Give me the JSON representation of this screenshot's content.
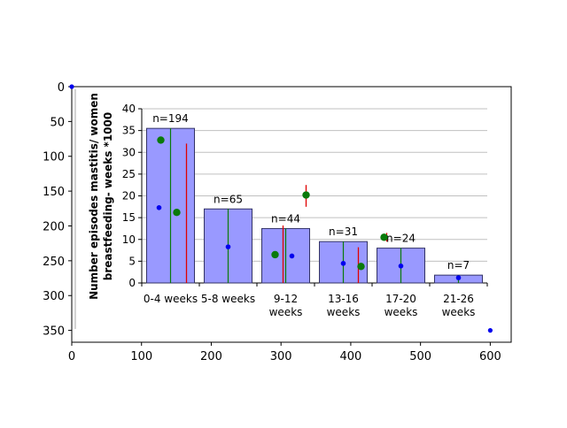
{
  "chart_data": {
    "type": "bar",
    "outer_axes": {
      "xlim": [
        0,
        630
      ],
      "ylim": [
        367,
        0
      ],
      "xticks": [
        0,
        100,
        200,
        300,
        400,
        500,
        600
      ],
      "yticks": [
        0,
        50,
        100,
        150,
        200,
        250,
        300,
        350
      ],
      "corner_points": [
        {
          "x": 0,
          "y": 0
        },
        {
          "x": 600,
          "y": 350
        }
      ]
    },
    "inner_chart": {
      "ylabel_lines": [
        "Number episodes mastitis/ women",
        "breastfeeding- weeks *1000"
      ],
      "ylim": [
        0,
        40
      ],
      "yticks": [
        0,
        5,
        10,
        15,
        20,
        25,
        30,
        35,
        40
      ],
      "grid": true,
      "categories": [
        [
          "0-4 weeks"
        ],
        [
          "5-8 weeks"
        ],
        [
          "9-12",
          "weeks"
        ],
        [
          "13-16",
          "weeks"
        ],
        [
          "17-20",
          "weeks"
        ],
        [
          "21-26",
          "weeks"
        ]
      ],
      "bar_values": [
        35.5,
        17,
        12.5,
        9.5,
        8,
        1.8
      ],
      "n_labels": [
        "n=194",
        "n=65",
        "n=44",
        "n=31",
        "n=24",
        "n=7"
      ],
      "green_lines": [
        {
          "low": 0,
          "high": 35.5
        },
        {
          "low": 0,
          "high": 17
        },
        {
          "low": 0,
          "high": 12.5
        },
        {
          "low": 0,
          "high": 9.5
        },
        {
          "low": 0,
          "high": 8
        },
        {
          "low": 0,
          "high": 1.8
        }
      ],
      "blue_points": [
        17.3,
        8.3,
        6.2,
        4.5,
        3.9,
        1.2
      ],
      "green_points": [
        {
          "cat": 0,
          "value": 32.8
        },
        {
          "cat": 0,
          "value": 16.2
        },
        {
          "cat": 2,
          "value": 6.5
        },
        {
          "cat": 2,
          "value": 20.2
        },
        {
          "cat": 3,
          "value": 3.8
        },
        {
          "cat": 4,
          "value": 10.5
        }
      ],
      "red_lines": [
        {
          "cat": 0,
          "low": 0,
          "high": 32.0
        },
        {
          "cat": 2,
          "low": 0,
          "high": 13.2
        },
        {
          "cat": 2,
          "low": 17.5,
          "high": 22.5
        },
        {
          "cat": 3,
          "low": 0,
          "high": 8.2
        },
        {
          "cat": 4,
          "low": 9.5,
          "high": 11.5
        }
      ],
      "colors": {
        "bar": "#9999ff",
        "bar_edge": "#333366",
        "green": "#0a7a0a",
        "red": "#e00000",
        "blue": "#0000ee",
        "grid": "#c0c0c0"
      }
    }
  }
}
